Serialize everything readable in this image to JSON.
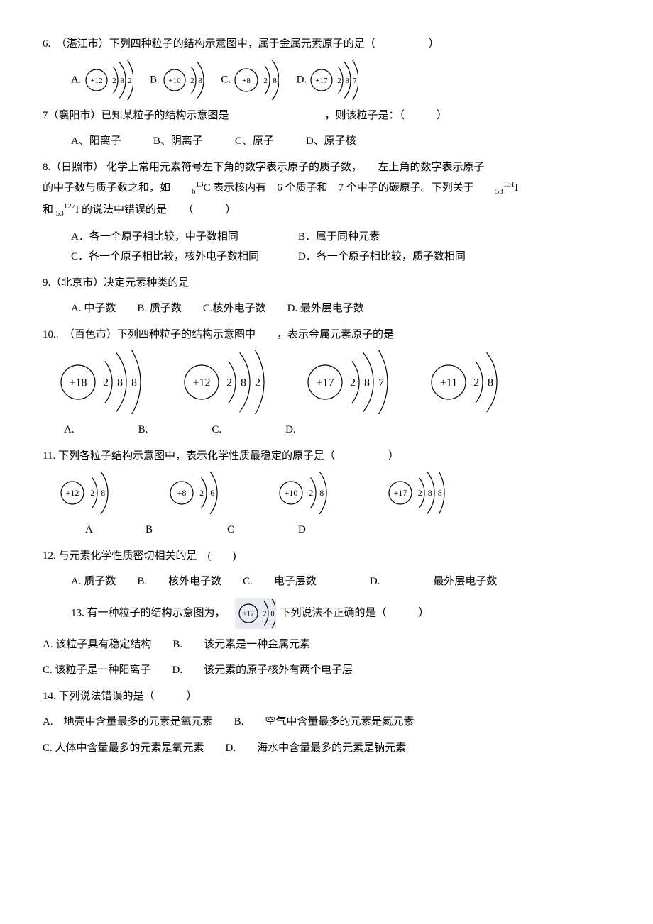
{
  "q6": {
    "stem": "6.　（湛江市）下列四种粒子的结构示意图中，属于金属元素原子的是（　　　　　）",
    "A": "A.",
    "B": "B.",
    "C": "C.",
    "D": "D.",
    "atoms": {
      "A": {
        "p": "+12",
        "s": [
          "2",
          "8",
          "2"
        ]
      },
      "B": {
        "p": "+10",
        "s": [
          "2",
          "8"
        ]
      },
      "C": {
        "p": "+8",
        "s": [
          "2",
          "8"
        ]
      },
      "D": {
        "p": "+17",
        "s": [
          "2",
          "8",
          "7"
        ]
      }
    }
  },
  "q7": {
    "stem": "7（襄阳市）已知某粒子的结构示意图是　　　　　　　　　，则该粒子是：（　　　）",
    "opts": "A、阳离子　　　B、阴离子　　　C、原子　　　D、原子核"
  },
  "q8": {
    "l1": "8.（日照市） 化学上常用元素符号左下角的数字表示原子的质子数，　　左上角的数字表示原子",
    "l2_a": "的中子数与质子数之和，如　　",
    "l2_b": "C 表示核内有　6 个质子和　7 个中子的碳原子。下列关于　　",
    "l3_a": "和 ",
    "l3_b": "I 的说法中错误的是　　（　　　）",
    "optA": "A．各一个原子相比较，中子数相同",
    "optB": "B．属于同种元素",
    "optC": "C．各一个原子相比较，核外电子数相同",
    "optD": "D．各一个原子相比较，质子数相同",
    "sub6": "6",
    "sup13": "13",
    "sub53": "53",
    "sup131": "131",
    "sup127": "127",
    "I": "I"
  },
  "q9": {
    "stem": "9.（北京市）决定元素种类的是",
    "opts": "A. 中子数　　B. 质子数　　C.核外电子数　　D. 最外层电子数"
  },
  "q10": {
    "stem": "10..　（百色市）下列四种粒子的结构示意图中　　，表示金属元素原子的是",
    "atoms": {
      "A": {
        "p": "+18",
        "s": [
          "2",
          "8",
          "8"
        ]
      },
      "B": {
        "p": "+12",
        "s": [
          "2",
          "8",
          "2"
        ]
      },
      "C": {
        "p": "+17",
        "s": [
          "2",
          "8",
          "7"
        ]
      },
      "D": {
        "p": "+11",
        "s": [
          "2",
          "8"
        ]
      }
    },
    "labels": "A.　　　　　　B.　　　　　　C.　　　　　　D."
  },
  "q11": {
    "stem": "11. 下列各粒子结构示意图中，表示化学性质最稳定的原子是（　　　　　）",
    "atoms": {
      "A": {
        "p": "+12",
        "s": [
          "2",
          "8"
        ]
      },
      "B": {
        "p": "+8",
        "s": [
          "2",
          "6"
        ]
      },
      "C": {
        "p": "+10",
        "s": [
          "2",
          "8"
        ]
      },
      "D": {
        "p": "+17",
        "s": [
          "2",
          "8",
          "8"
        ]
      }
    },
    "labels": "　　A　　　　　B　　　　　　　C　　　　　　D"
  },
  "q12": {
    "stem": "12. 与元素化学性质密切相关的是　(　　)",
    "opts": "A. 质子数　　B.　　核外电子数　　C.　　电子层数　　　　　D.　　　　　最外层电子数"
  },
  "q13": {
    "a": "13. 有一种粒子的结构示意图为，　",
    "b": "下列说法不正确的是（　　　）",
    "atom": {
      "p": "+12",
      "s": [
        "2",
        "8"
      ]
    },
    "optA": "A. 该粒子具有稳定结构",
    "optB": "B.　　该元素是一种金属元素",
    "optC": "C. 该粒子是一种阳离子",
    "optD": "D.　　该元素的原子核外有两个电子层"
  },
  "q14": {
    "stem": "14. 下列说法错误的是（　　　）",
    "optA": "A.　地壳中含量最多的元素是氧元素",
    "optB": "B.　　空气中含量最多的元素是氮元素",
    "optC": "C. 人体中含量最多的元素是氧元素",
    "optD": "D.　　海水中含量最多的元素是钠元素"
  },
  "style": {
    "circleFill": "#ffffff",
    "stroke": "#000000",
    "text": "#000000",
    "arcWidth": 1.2,
    "fontSize": 14
  }
}
